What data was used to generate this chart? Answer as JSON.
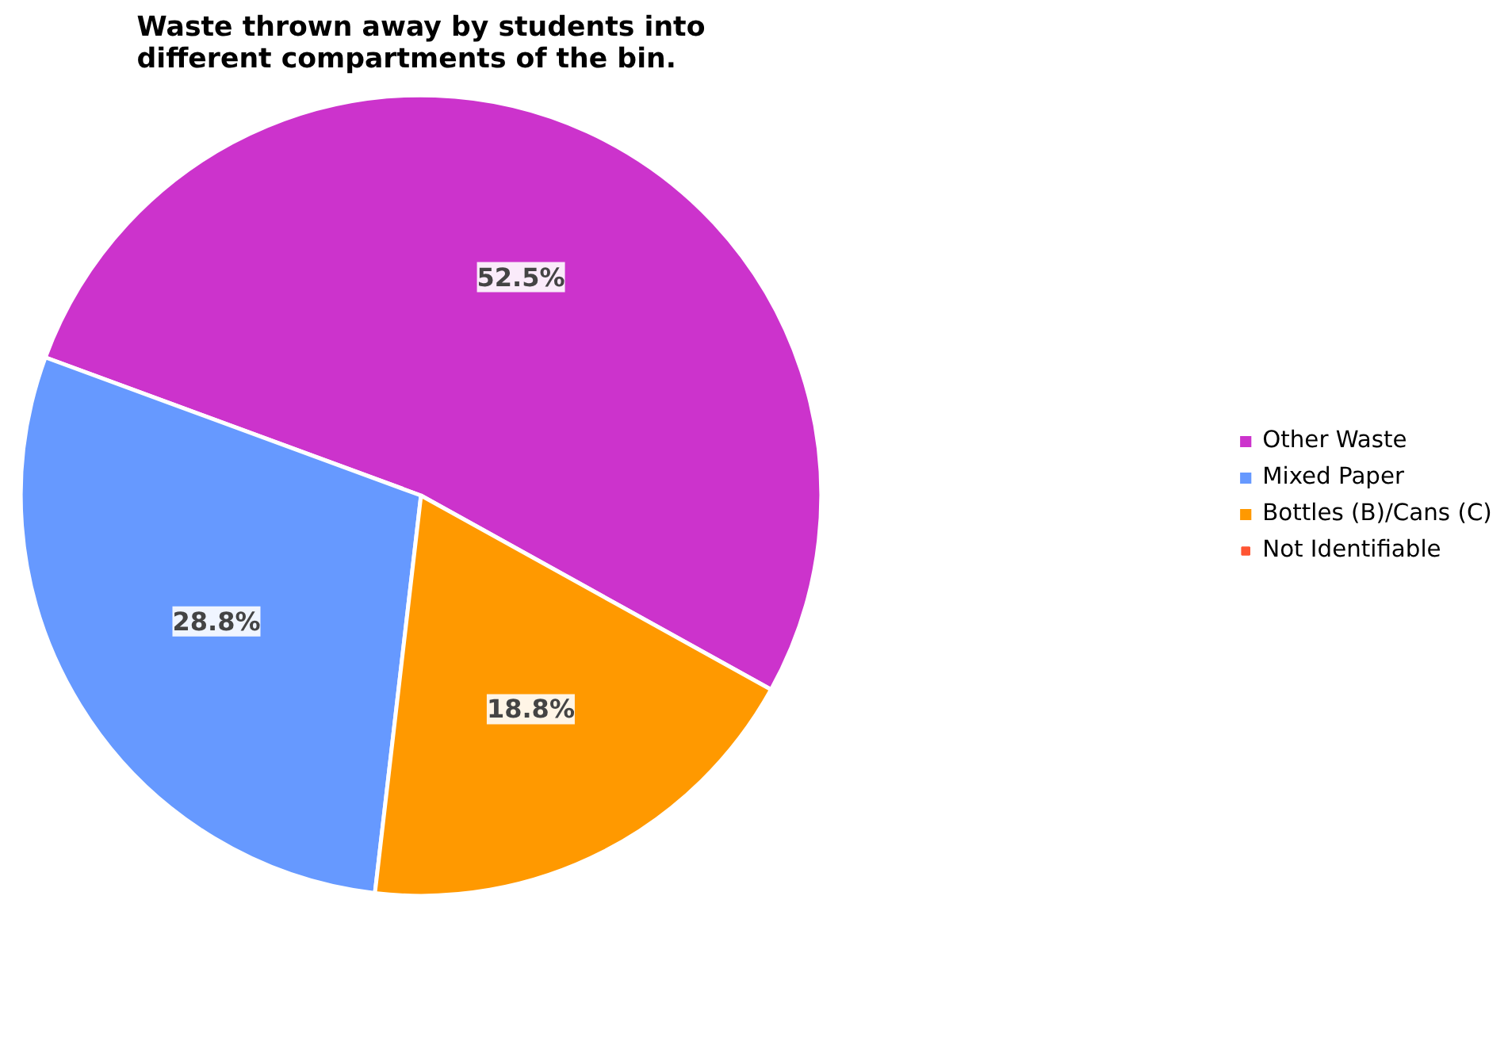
{
  "chart_data": {
    "type": "pie",
    "title": "Waste thrown away by students into different compartments of the bin.",
    "categories": [
      "Other Waste",
      "Mixed Paper",
      "Bottles (B)/Cans (C)",
      "Not Identifiable"
    ],
    "values": [
      52.5,
      28.8,
      18.8,
      0
    ],
    "colors": [
      "#cc33cc",
      "#6699ff",
      "#ff9900",
      "#ff5533"
    ],
    "value_labels": [
      "52.5%",
      "28.8%",
      "18.8%",
      null
    ],
    "legend": "right"
  }
}
